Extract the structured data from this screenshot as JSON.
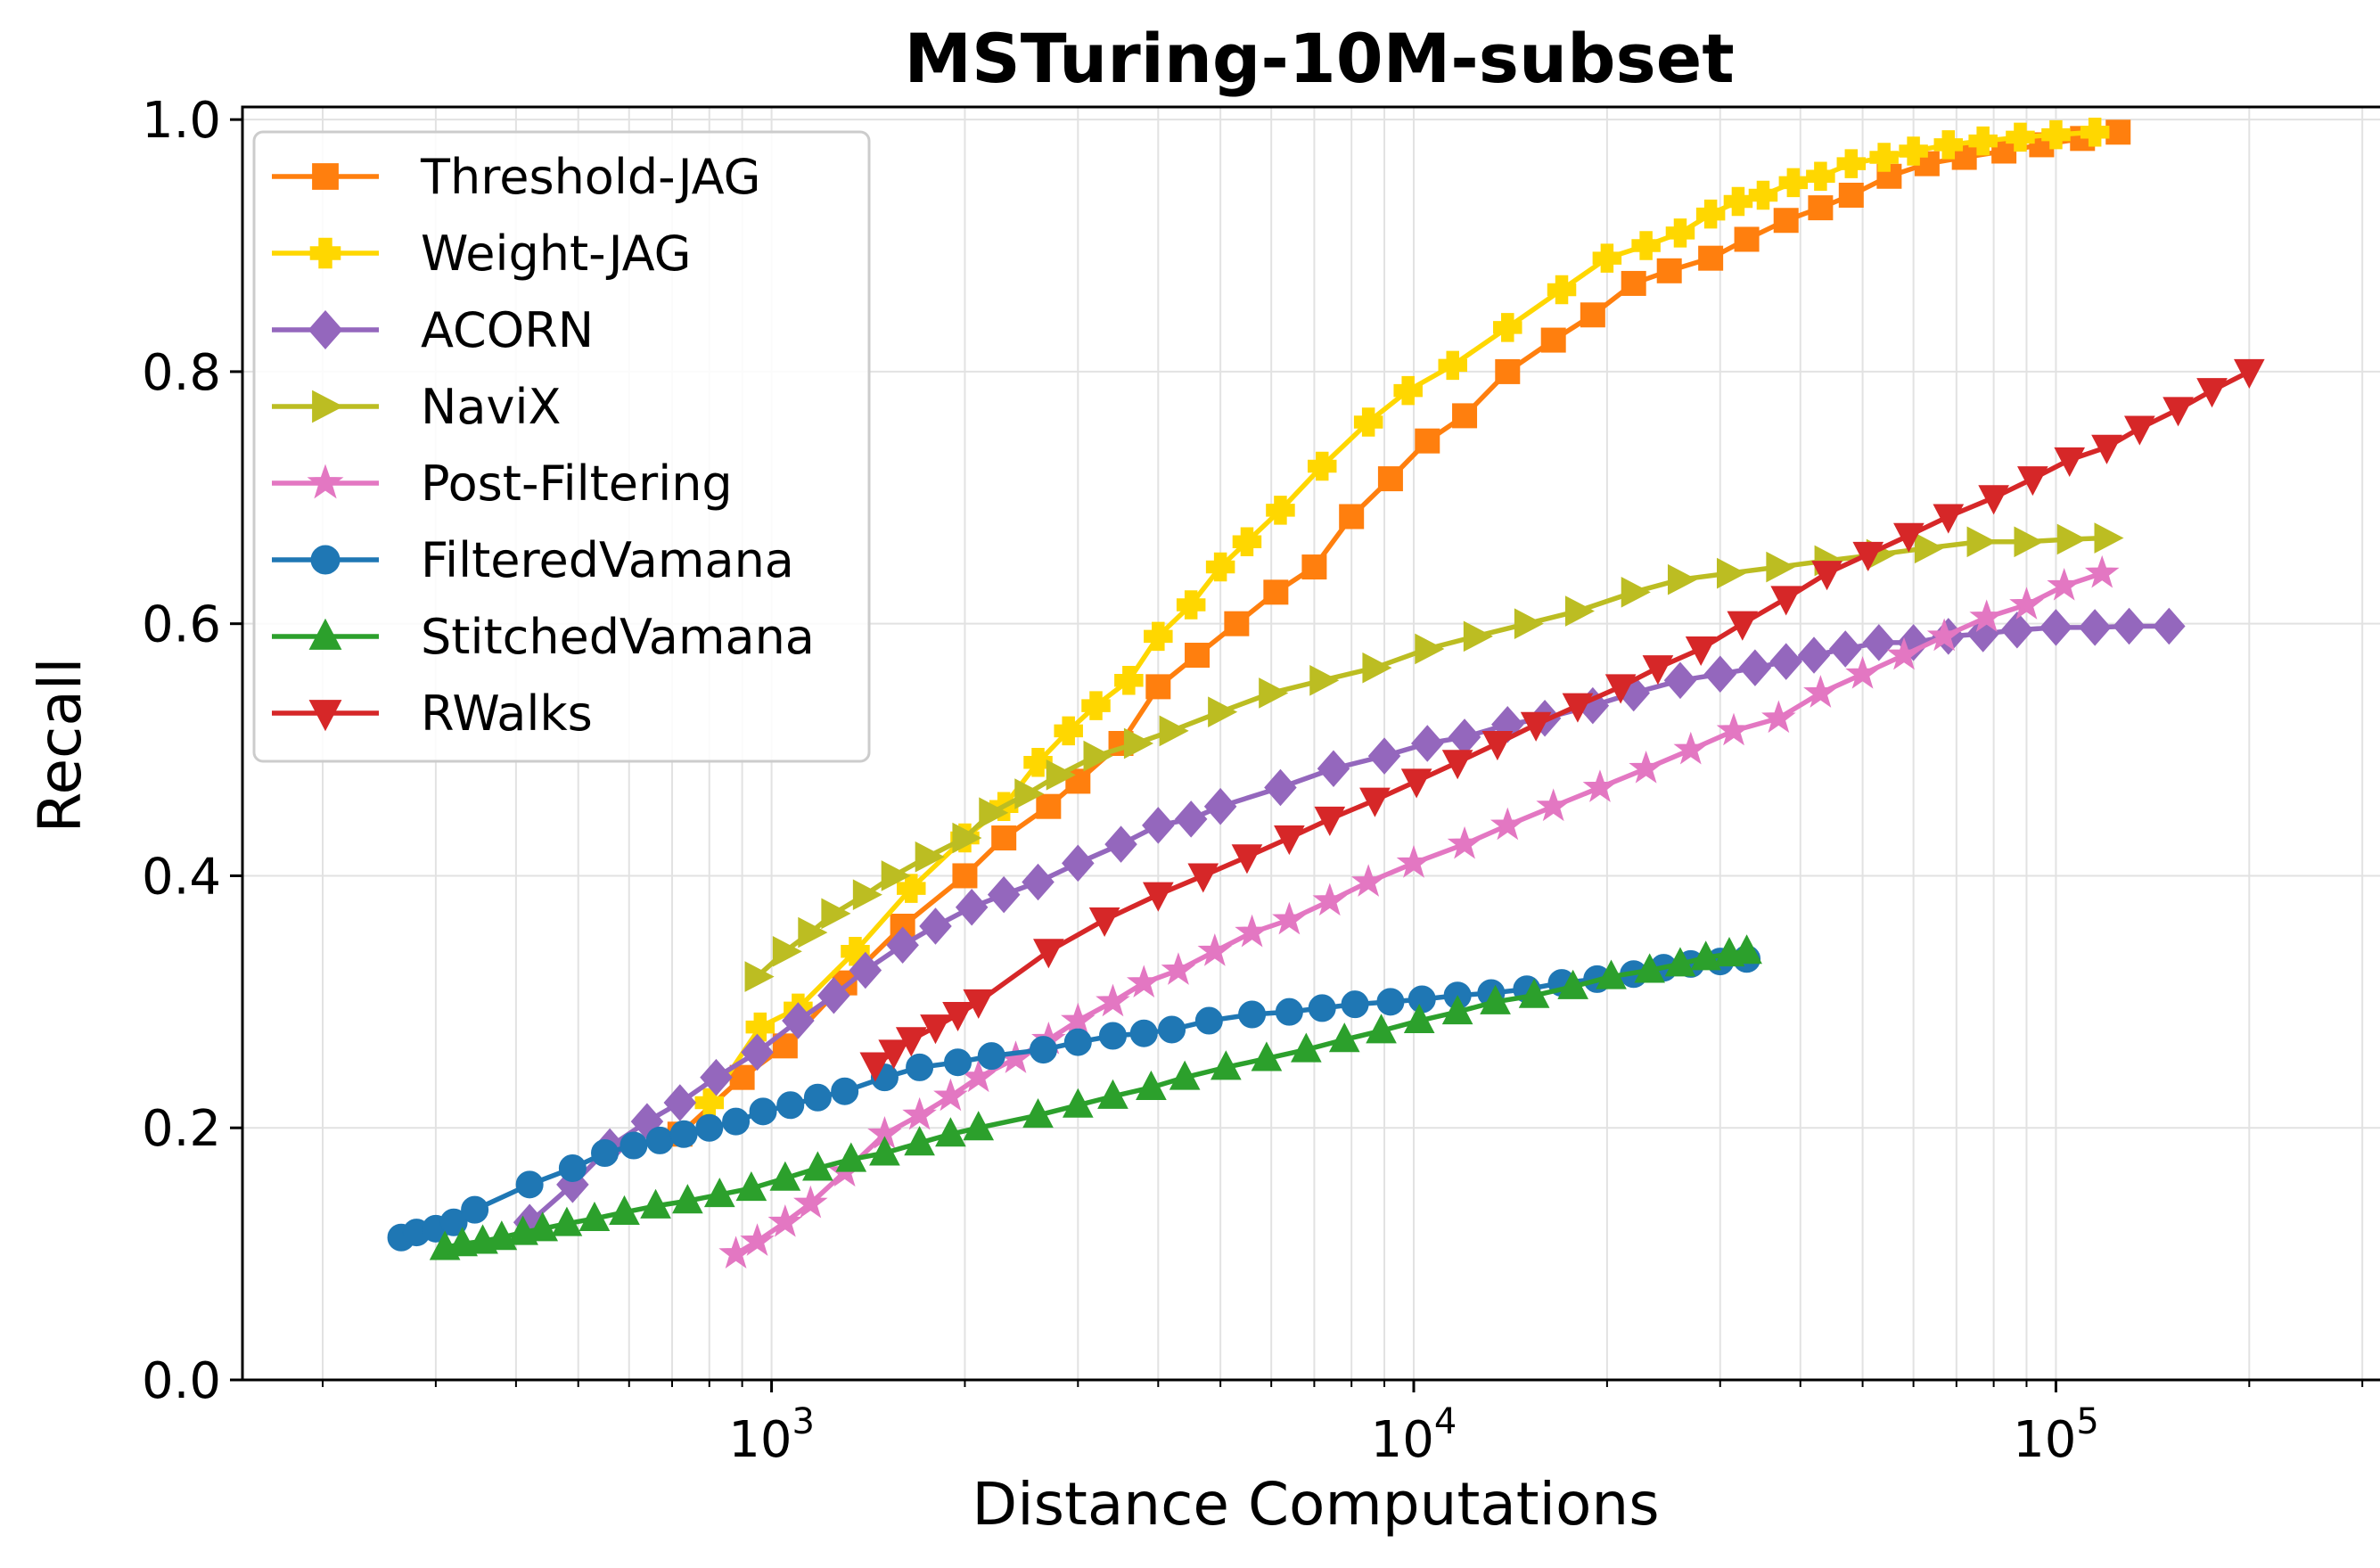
{
  "chart_data": {
    "type": "line",
    "title": "MSTuring-10M-subset",
    "xlabel": "Distance Computations",
    "ylabel": "Recall",
    "xscale": "log",
    "xlim": [
      150,
      330000
    ],
    "ylim": [
      0.0,
      1.01
    ],
    "grid": true,
    "legend_position": "top-left",
    "y_ticks": [
      {
        "value": 0.0,
        "label": "0.0"
      },
      {
        "value": 0.2,
        "label": "0.2"
      },
      {
        "value": 0.4,
        "label": "0.4"
      },
      {
        "value": 0.6,
        "label": "0.6"
      },
      {
        "value": 0.8,
        "label": "0.8"
      },
      {
        "value": 1.0,
        "label": "1.0"
      }
    ],
    "x_ticks": [
      {
        "value": 1000,
        "base": "10",
        "exp": "3"
      },
      {
        "value": 10000,
        "base": "10",
        "exp": "4"
      },
      {
        "value": 100000,
        "base": "10",
        "exp": "5"
      }
    ],
    "series": [
      {
        "name": "Threshold-JAG",
        "color": "#ff7f0e",
        "marker": "square",
        "x": [
          720,
          900,
          1050,
          1300,
          1600,
          2000,
          2300,
          2700,
          3000,
          3500,
          4000,
          4600,
          5300,
          6100,
          7000,
          8000,
          9200,
          10500,
          12000,
          14000,
          16500,
          19000,
          22000,
          25000,
          29000,
          33000,
          38000,
          43000,
          48000,
          55000,
          63000,
          72000,
          83000,
          95000,
          110000,
          125000
        ],
        "y": [
          0.195,
          0.24,
          0.265,
          0.315,
          0.36,
          0.4,
          0.43,
          0.455,
          0.475,
          0.505,
          0.55,
          0.575,
          0.6,
          0.625,
          0.645,
          0.685,
          0.715,
          0.745,
          0.765,
          0.8,
          0.825,
          0.845,
          0.87,
          0.88,
          0.89,
          0.905,
          0.92,
          0.93,
          0.94,
          0.955,
          0.965,
          0.97,
          0.975,
          0.98,
          0.985,
          0.99
        ]
      },
      {
        "name": "Weight-JAG",
        "color": "#ffd700",
        "marker": "plus",
        "x": [
          800,
          960,
          1100,
          1350,
          1650,
          2000,
          2300,
          2600,
          2900,
          3200,
          3600,
          4000,
          4500,
          5000,
          5500,
          6200,
          7200,
          8500,
          9800,
          11500,
          14000,
          17000,
          20000,
          23000,
          26000,
          29000,
          32000,
          35000,
          39000,
          43000,
          48000,
          54000,
          60000,
          68000,
          77000,
          88000,
          100000,
          115000
        ],
        "y": [
          0.22,
          0.28,
          0.295,
          0.34,
          0.39,
          0.43,
          0.455,
          0.49,
          0.515,
          0.535,
          0.555,
          0.59,
          0.615,
          0.645,
          0.665,
          0.69,
          0.725,
          0.76,
          0.785,
          0.805,
          0.835,
          0.865,
          0.89,
          0.9,
          0.91,
          0.925,
          0.935,
          0.94,
          0.95,
          0.955,
          0.965,
          0.97,
          0.975,
          0.98,
          0.983,
          0.986,
          0.988,
          0.99
        ]
      },
      {
        "name": "ACORN",
        "color": "#9467bd",
        "marker": "diamond",
        "x": [
          420,
          490,
          560,
          640,
          720,
          820,
          950,
          1100,
          1250,
          1400,
          1600,
          1800,
          2050,
          2300,
          2600,
          3000,
          3500,
          4000,
          4500,
          5000,
          6200,
          7500,
          9000,
          10500,
          12000,
          14000,
          16000,
          19000,
          22000,
          26000,
          30000,
          34000,
          38000,
          42000,
          47000,
          53000,
          60000,
          68000,
          77000,
          87000,
          100000,
          115000,
          130000,
          150000
        ],
        "y": [
          0.125,
          0.155,
          0.185,
          0.205,
          0.22,
          0.24,
          0.26,
          0.285,
          0.305,
          0.325,
          0.345,
          0.36,
          0.375,
          0.385,
          0.395,
          0.41,
          0.425,
          0.44,
          0.445,
          0.455,
          0.47,
          0.485,
          0.495,
          0.505,
          0.51,
          0.52,
          0.525,
          0.535,
          0.545,
          0.555,
          0.56,
          0.565,
          0.57,
          0.575,
          0.58,
          0.585,
          0.585,
          0.59,
          0.592,
          0.595,
          0.597,
          0.597,
          0.598,
          0.598
        ]
      },
      {
        "name": "NaviX",
        "color": "#bcbd22",
        "marker": "triangle-right",
        "x": [
          950,
          1050,
          1150,
          1250,
          1400,
          1550,
          1750,
          2000,
          2200,
          2500,
          2800,
          3200,
          3700,
          4200,
          5000,
          6000,
          7200,
          8700,
          10500,
          12500,
          15000,
          18000,
          22000,
          26000,
          31000,
          37000,
          44000,
          53000,
          63000,
          76000,
          90000,
          105000,
          120000
        ],
        "y": [
          0.32,
          0.34,
          0.355,
          0.37,
          0.385,
          0.4,
          0.415,
          0.43,
          0.45,
          0.465,
          0.48,
          0.495,
          0.505,
          0.515,
          0.53,
          0.545,
          0.555,
          0.565,
          0.58,
          0.59,
          0.6,
          0.61,
          0.625,
          0.635,
          0.64,
          0.645,
          0.65,
          0.655,
          0.66,
          0.665,
          0.665,
          0.667,
          0.668
        ]
      },
      {
        "name": "Post-Filtering",
        "color": "#e377c2",
        "marker": "star",
        "x": [
          880,
          950,
          1050,
          1150,
          1300,
          1500,
          1700,
          1900,
          2100,
          2400,
          2700,
          3000,
          3400,
          3800,
          4300,
          4900,
          5600,
          6400,
          7400,
          8500,
          10000,
          12000,
          14000,
          16500,
          19500,
          23000,
          27000,
          31500,
          37000,
          43000,
          50000,
          58000,
          67000,
          78000,
          90000,
          103000,
          118000
        ],
        "y": [
          0.1,
          0.11,
          0.125,
          0.14,
          0.165,
          0.195,
          0.21,
          0.225,
          0.24,
          0.255,
          0.27,
          0.285,
          0.3,
          0.315,
          0.325,
          0.34,
          0.355,
          0.365,
          0.38,
          0.395,
          0.41,
          0.425,
          0.44,
          0.455,
          0.47,
          0.485,
          0.5,
          0.515,
          0.525,
          0.545,
          0.56,
          0.575,
          0.59,
          0.605,
          0.615,
          0.63,
          0.64
        ]
      },
      {
        "name": "FilteredVamana",
        "color": "#1f77b4",
        "marker": "circle",
        "x": [
          265,
          280,
          300,
          320,
          345,
          420,
          490,
          550,
          610,
          670,
          730,
          800,
          880,
          970,
          1070,
          1180,
          1300,
          1500,
          1700,
          1950,
          2200,
          2650,
          3000,
          3400,
          3800,
          4200,
          4800,
          5600,
          6400,
          7200,
          8100,
          9200,
          10300,
          11700,
          13200,
          15000,
          17000,
          19300,
          22000,
          24500,
          27000,
          30000,
          33000
        ],
        "y": [
          0.113,
          0.117,
          0.12,
          0.125,
          0.135,
          0.155,
          0.168,
          0.18,
          0.186,
          0.19,
          0.195,
          0.2,
          0.205,
          0.213,
          0.218,
          0.224,
          0.229,
          0.24,
          0.248,
          0.252,
          0.257,
          0.262,
          0.268,
          0.273,
          0.275,
          0.278,
          0.285,
          0.29,
          0.292,
          0.295,
          0.298,
          0.3,
          0.302,
          0.305,
          0.307,
          0.31,
          0.315,
          0.318,
          0.322,
          0.327,
          0.33,
          0.332,
          0.334
        ]
      },
      {
        "name": "StitchedVamana",
        "color": "#2ca02c",
        "marker": "triangle-up",
        "x": [
          310,
          330,
          355,
          380,
          410,
          440,
          480,
          530,
          590,
          660,
          740,
          830,
          930,
          1050,
          1180,
          1330,
          1500,
          1700,
          1900,
          2100,
          2600,
          3000,
          3400,
          3900,
          4400,
          5100,
          5900,
          6800,
          7800,
          8900,
          10200,
          11700,
          13400,
          15400,
          17700,
          20300,
          23300,
          26000,
          28500,
          31000,
          33000
        ],
        "y": [
          0.105,
          0.108,
          0.11,
          0.113,
          0.117,
          0.12,
          0.124,
          0.128,
          0.133,
          0.138,
          0.142,
          0.147,
          0.152,
          0.16,
          0.168,
          0.175,
          0.18,
          0.188,
          0.195,
          0.2,
          0.21,
          0.218,
          0.225,
          0.232,
          0.24,
          0.248,
          0.255,
          0.262,
          0.27,
          0.277,
          0.285,
          0.292,
          0.3,
          0.305,
          0.312,
          0.32,
          0.325,
          0.33,
          0.335,
          0.338,
          0.34
        ]
      },
      {
        "name": "RWalks",
        "color": "#d62728",
        "marker": "triangle-down",
        "x": [
          1450,
          1550,
          1650,
          1800,
          1950,
          2100,
          2700,
          3300,
          4000,
          4700,
          5500,
          6400,
          7400,
          8700,
          10100,
          11700,
          13500,
          15500,
          18000,
          21000,
          24000,
          28000,
          32500,
          38000,
          44000,
          51000,
          59000,
          68000,
          80000,
          92000,
          105000,
          120000,
          135000,
          155000,
          175000,
          200000
        ],
        "y": [
          0.25,
          0.26,
          0.27,
          0.28,
          0.29,
          0.3,
          0.34,
          0.365,
          0.385,
          0.4,
          0.415,
          0.43,
          0.445,
          0.46,
          0.475,
          0.49,
          0.505,
          0.52,
          0.535,
          0.55,
          0.565,
          0.58,
          0.6,
          0.62,
          0.64,
          0.655,
          0.67,
          0.685,
          0.7,
          0.715,
          0.73,
          0.74,
          0.755,
          0.77,
          0.785,
          0.8
        ]
      }
    ]
  }
}
